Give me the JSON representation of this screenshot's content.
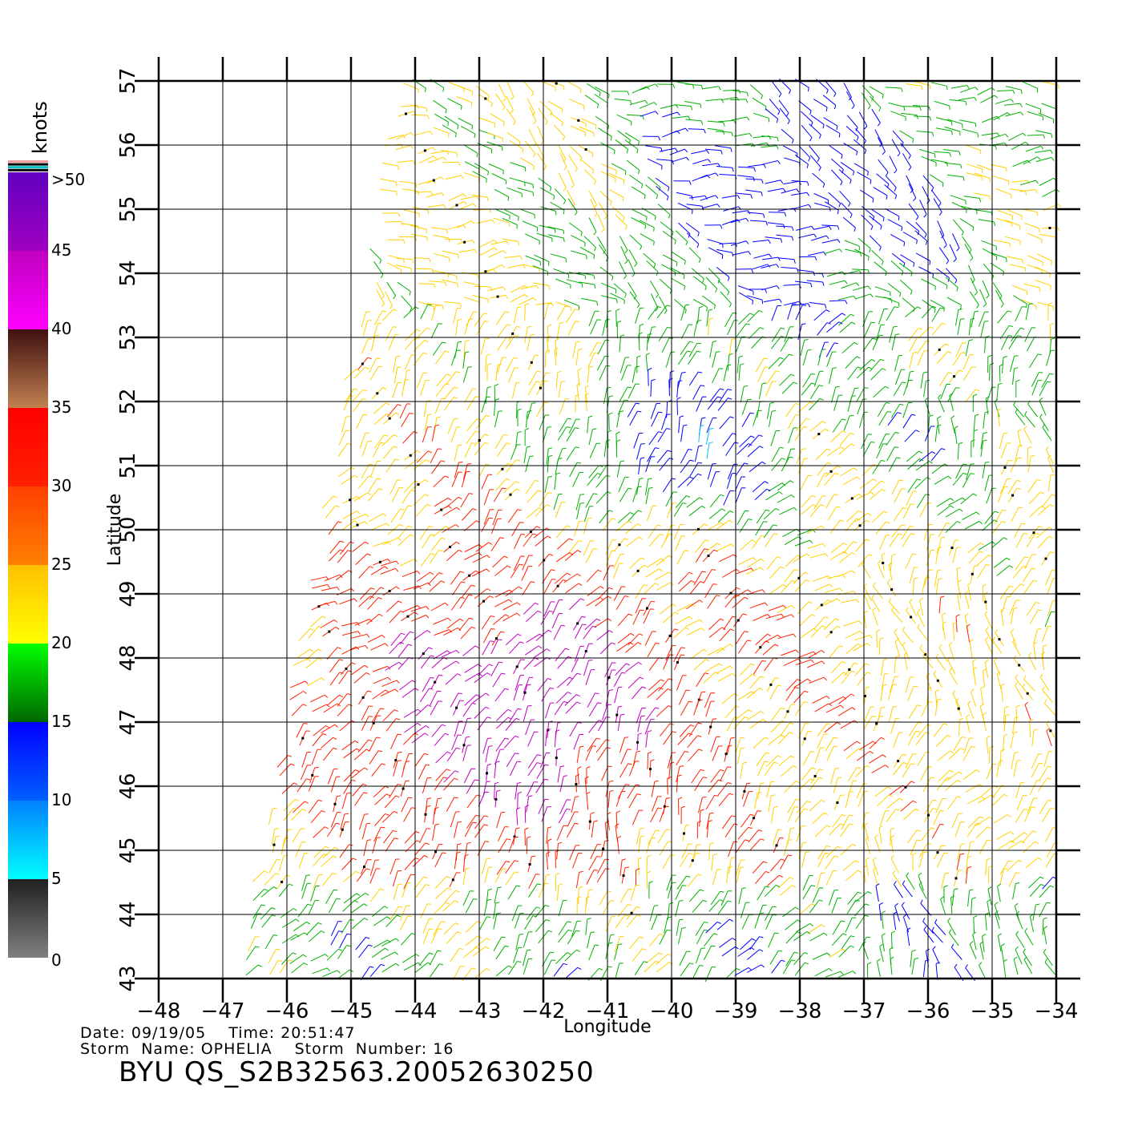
{
  "map": {
    "x_axis": {
      "label": "Longitude",
      "range": [
        -48,
        -34
      ],
      "ticks": [
        "−48",
        "−47",
        "−46",
        "−45",
        "−44",
        "−43",
        "−42",
        "−41",
        "−40",
        "−39",
        "−38",
        "−37",
        "−36",
        "−35",
        "−34"
      ]
    },
    "y_axis": {
      "label": "Latitude",
      "range": [
        43,
        57
      ],
      "ticks": [
        "43",
        "44",
        "45",
        "46",
        "47",
        "48",
        "49",
        "50",
        "51",
        "52",
        "53",
        "54",
        "55",
        "56",
        "57"
      ]
    },
    "grid": true
  },
  "legend": {
    "title": "knots",
    "labels": [
      "0",
      "5",
      "10",
      "15",
      "20",
      "25",
      "30",
      "35",
      "40",
      "45",
      ">50"
    ],
    "bands": [
      {
        "from": 0,
        "to": 5,
        "colors": [
          "#808080",
          "#202020"
        ]
      },
      {
        "from": 5,
        "to": 10,
        "colors": [
          "#00ffff",
          "#0080ff"
        ]
      },
      {
        "from": 10,
        "to": 15,
        "colors": [
          "#0060ff",
          "#0000ff"
        ]
      },
      {
        "from": 15,
        "to": 20,
        "colors": [
          "#006600",
          "#00ff00"
        ]
      },
      {
        "from": 20,
        "to": 25,
        "colors": [
          "#ffff00",
          "#ffc000"
        ]
      },
      {
        "from": 25,
        "to": 30,
        "colors": [
          "#ff8000",
          "#ff4000"
        ]
      },
      {
        "from": 30,
        "to": 35,
        "colors": [
          "#ff2000",
          "#ff0000"
        ]
      },
      {
        "from": 35,
        "to": 40,
        "colors": [
          "#c08050",
          "#401010"
        ]
      },
      {
        "from": 40,
        "to": 45,
        "colors": [
          "#ff00ff",
          "#c000c0"
        ]
      },
      {
        "from": 45,
        "to": 50,
        "colors": [
          "#a000c0",
          "#6000c0"
        ]
      }
    ],
    "top_stripes": [
      "#f0a0a0",
      "#000000",
      "#00c0c0",
      "#000000"
    ]
  },
  "wind_colors": {
    "calm": "#000000",
    "light": "#00c0ff",
    "moderate": "#0000ff",
    "fresh": "#00b000",
    "strong": "#ffd000",
    "gale": "#ff2000",
    "storm": "#c000c0"
  },
  "info": {
    "date_label": "Date:",
    "date": "09/19/05",
    "time_label": "Time:",
    "time": "20:51:47",
    "storm_name_label": "Storm  Name:",
    "storm_name": "OPHELIA",
    "storm_number_label": "Storm  Number:",
    "storm_number": "16",
    "product_id": "BYU  QS_S2B32563.20052630250"
  }
}
